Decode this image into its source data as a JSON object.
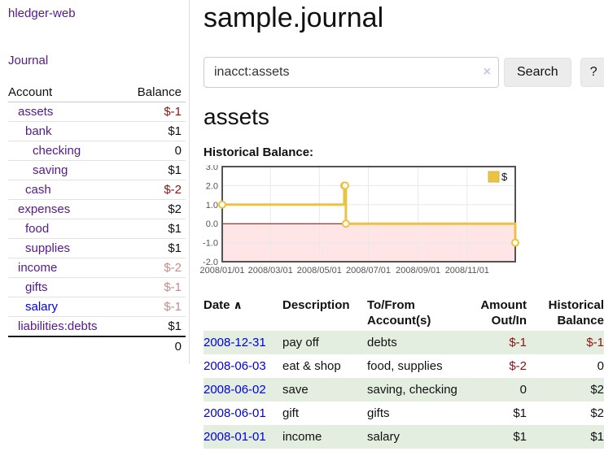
{
  "app": {
    "brand": "hledger-web"
  },
  "sidebar": {
    "nav": {
      "journal": "Journal"
    },
    "accounts": {
      "headers": {
        "account": "Account",
        "balance": "Balance"
      },
      "rows": [
        {
          "account": "assets",
          "balance": "$-1"
        },
        {
          "account": "bank",
          "balance": "$1"
        },
        {
          "account": "checking",
          "balance": "0"
        },
        {
          "account": "saving",
          "balance": "$1"
        },
        {
          "account": "cash",
          "balance": "$-2"
        },
        {
          "account": "expenses",
          "balance": "$2"
        },
        {
          "account": "food",
          "balance": "$1"
        },
        {
          "account": "supplies",
          "balance": "$1"
        },
        {
          "account": "income",
          "balance": "$-2"
        },
        {
          "account": "gifts",
          "balance": "$-1"
        },
        {
          "account": "salary",
          "balance": "$-1"
        },
        {
          "account": "liabilities:debts",
          "balance": "$1"
        }
      ],
      "total": "0"
    }
  },
  "main": {
    "title": "sample.journal",
    "search": {
      "value": "inacct:assets",
      "clear_icon": "×",
      "button": "Search",
      "help_button": "?"
    },
    "account_heading": "assets",
    "chart_label": "Historical Balance:"
  },
  "chart_data": {
    "type": "line",
    "style": "step-after",
    "title": "Historical Balance",
    "xlabel": "",
    "ylabel": "",
    "xlim": [
      "2008-01-01",
      "2008-12-31"
    ],
    "ylim": [
      -2.0,
      3.0
    ],
    "yticks": [
      {
        "v": 3.0,
        "label": "3.0"
      },
      {
        "v": 2.0,
        "label": "2.0"
      },
      {
        "v": 1.0,
        "label": "1.0"
      },
      {
        "v": 0.0,
        "label": "0.0"
      },
      {
        "v": -1.0,
        "label": "-1.0"
      },
      {
        "v": -2.0,
        "label": "-2.0"
      }
    ],
    "xticks": [
      {
        "d": "2008-01-01",
        "label": "2008/01/01"
      },
      {
        "d": "2008-03-01",
        "label": "2008/03/01"
      },
      {
        "d": "2008-05-01",
        "label": "2008/05/01"
      },
      {
        "d": "2008-07-01",
        "label": "2008/07/01"
      },
      {
        "d": "2008-09-01",
        "label": "2008/09/01"
      },
      {
        "d": "2008-11-01",
        "label": "2008/11/01"
      }
    ],
    "legend": {
      "position": "top-right",
      "entries": [
        {
          "label": "$",
          "color": "#edc240"
        }
      ]
    },
    "series": [
      {
        "name": "$",
        "points": [
          [
            "2008-01-01",
            1
          ],
          [
            "2008-06-01",
            2
          ],
          [
            "2008-06-02",
            2
          ],
          [
            "2008-06-03",
            0
          ],
          [
            "2008-12-31",
            -1
          ]
        ]
      }
    ],
    "grid": true,
    "colors": {
      "series": "#edc240",
      "marker_fill": "#ffffff",
      "border": "#545454",
      "grid": "#e8e8e8",
      "zero_line": "#8b0000",
      "negative_region": "rgba(255,0,0,0.10)",
      "tick_text": "#545454"
    }
  },
  "transactions": {
    "headers": {
      "date": "Date",
      "description": "Description",
      "accounts": "To/From Account(s)",
      "amount": "Amount Out/In",
      "balance": "Historical Balance"
    },
    "sort_icon": "∧",
    "rows": [
      {
        "date": "2008-12-31",
        "description": "pay off",
        "accounts": "debts",
        "amount": "$-1",
        "balance": "$-1"
      },
      {
        "date": "2008-06-03",
        "description": "eat & shop",
        "accounts": "food, supplies",
        "amount": "$-2",
        "balance": "0"
      },
      {
        "date": "2008-06-02",
        "description": "save",
        "accounts": "saving, checking",
        "amount": "0",
        "balance": "$2"
      },
      {
        "date": "2008-06-01",
        "description": "gift",
        "accounts": "gifts",
        "amount": "$1",
        "balance": "$2"
      },
      {
        "date": "2008-01-01",
        "description": "income",
        "accounts": "salary",
        "amount": "$1",
        "balance": "$1"
      }
    ]
  },
  "colors": {
    "link_purple": "#551a8b",
    "link_blue": "#0000ee",
    "negative": "#8b1414",
    "negative_pale": "#c98b8b",
    "row_stripe_green": "#e3eee1",
    "button_bg": "#ececec"
  }
}
